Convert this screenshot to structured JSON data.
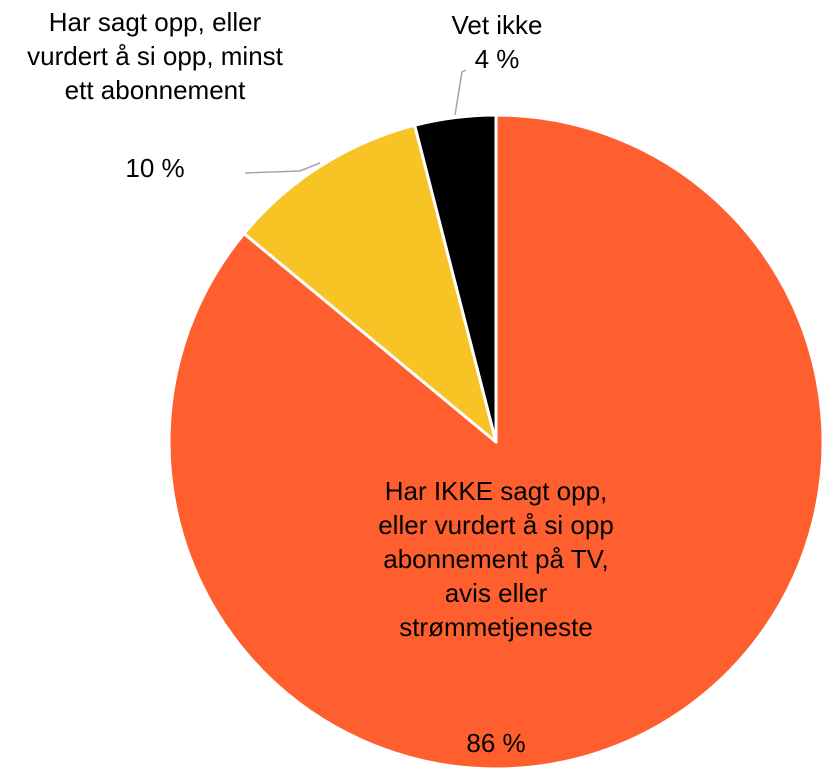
{
  "chart_data": {
    "type": "pie",
    "categories": [
      "Har IKKE sagt opp, eller vurdert å si opp abonnement på TV, avis eller strømmetjeneste",
      "Har sagt opp, eller vurdert å si opp, minst ett abonnement",
      "Vet ikke"
    ],
    "values": [
      86,
      10,
      4
    ],
    "value_labels": [
      "86 %",
      "10 %",
      "4 %"
    ],
    "colors": [
      "#ff5f2e",
      "#f8c325",
      "#000000"
    ]
  }
}
